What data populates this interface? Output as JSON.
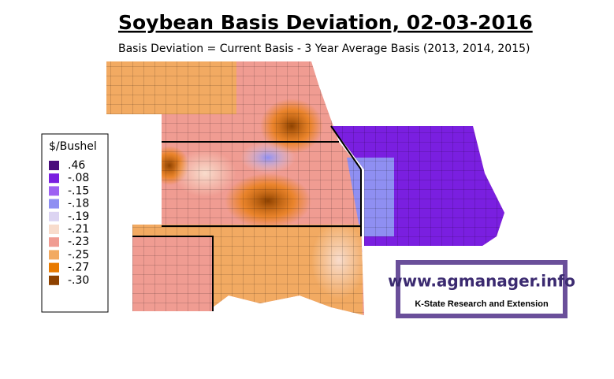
{
  "header": {
    "title": "Soybean Basis Deviation, 02-03-2016",
    "subtitle": "Basis Deviation = Current Basis - 3 Year Average Basis (2013, 2014, 2015)"
  },
  "legend": {
    "title": "$/Bushel",
    "items": [
      {
        "label": ".46",
        "color": "#4a0e7c"
      },
      {
        "label": "-.08",
        "color": "#7a1fe0"
      },
      {
        "label": "-.15",
        "color": "#9e62f2"
      },
      {
        "label": "-.18",
        "color": "#8f8ff2"
      },
      {
        "label": "-.19",
        "color": "#dcd4f2"
      },
      {
        "label": "-.21",
        "color": "#f8dccc"
      },
      {
        "label": "-.23",
        "color": "#f09c92"
      },
      {
        "label": "-.25",
        "color": "#f2aa62"
      },
      {
        "label": "-.27",
        "color": "#e87a00"
      },
      {
        "label": "-.30",
        "color": "#8e4200"
      }
    ]
  },
  "logo": {
    "url": "www.agmanager.info",
    "org": "K-State Research and Extension"
  }
}
